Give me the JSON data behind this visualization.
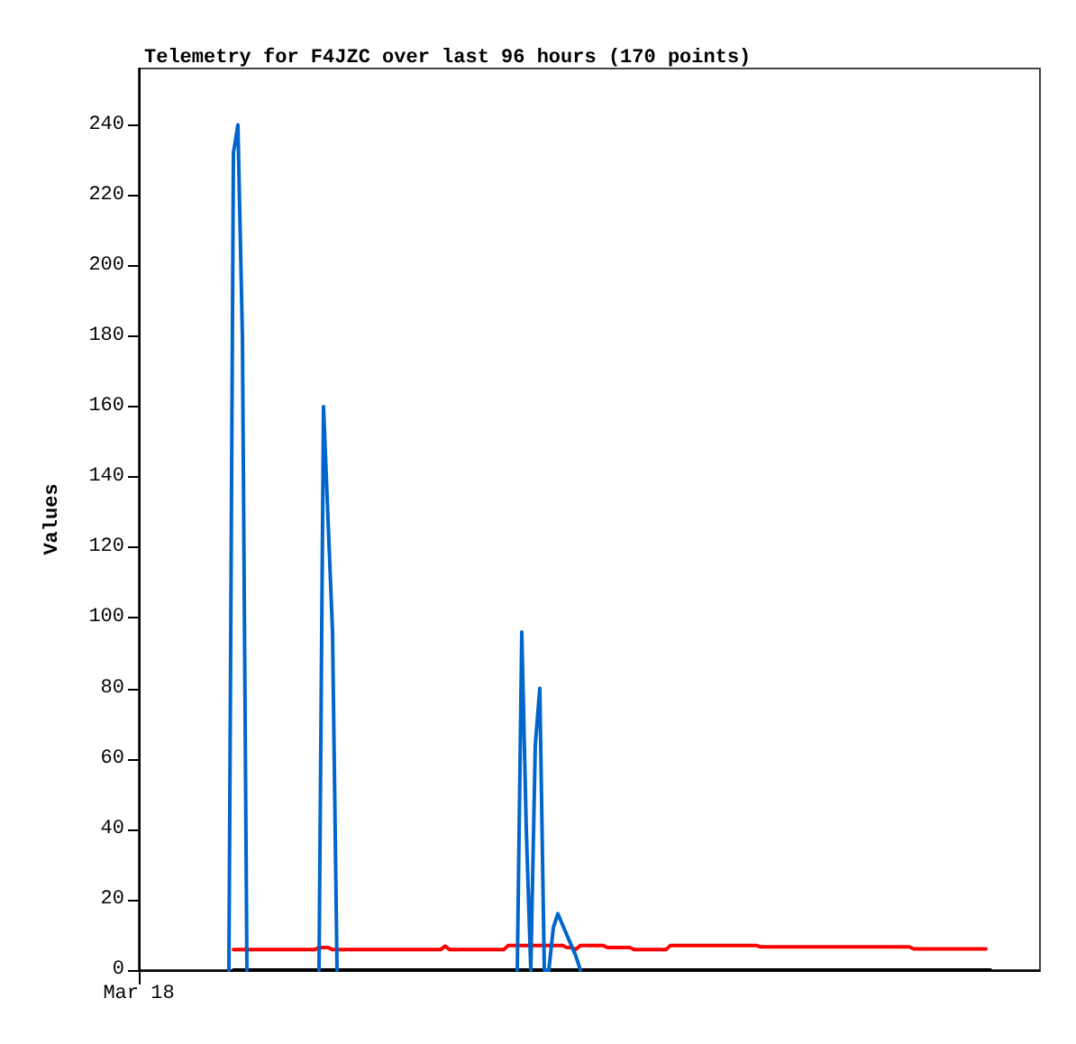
{
  "chart_data": {
    "type": "line",
    "title": "Telemetry for F4JZC over last 96 hours (170 points)",
    "ylabel": "Values",
    "categories": [
      "Mar 18",
      null,
      null,
      null,
      null,
      null,
      null,
      null,
      null,
      null,
      null,
      null,
      null,
      null,
      null,
      null,
      null,
      null,
      null,
      null,
      null,
      null,
      null,
      null,
      null,
      null,
      null,
      null,
      null,
      null,
      null,
      null,
      null,
      null,
      null,
      null,
      null,
      null,
      null,
      null,
      null,
      null,
      null,
      null,
      null,
      null,
      null,
      null,
      null,
      null,
      null,
      null,
      null,
      null,
      null,
      null,
      null,
      null,
      null,
      null,
      null,
      null,
      null,
      null,
      null,
      null,
      null,
      null,
      null,
      null,
      null,
      null,
      null,
      null,
      null,
      null,
      null,
      null,
      null,
      null,
      null,
      null,
      null,
      null,
      null,
      null,
      null,
      null,
      null,
      null,
      null,
      null,
      null,
      null,
      null,
      null,
      null,
      null,
      null,
      null,
      null,
      null,
      null,
      null,
      null,
      null,
      null,
      null,
      null,
      null,
      null,
      null,
      null,
      null,
      null,
      null,
      null,
      null,
      null,
      null,
      null,
      null,
      null,
      null,
      null,
      null,
      null,
      null,
      null,
      null,
      null,
      null,
      null,
      null,
      null,
      null,
      null,
      null,
      null,
      null,
      null,
      null,
      null,
      null,
      null,
      null,
      null,
      null,
      null,
      null,
      null,
      null,
      null,
      null,
      null,
      null,
      null,
      null,
      null,
      null,
      null,
      null,
      null,
      null,
      null,
      null,
      null,
      null,
      null,
      null,
      null,
      null,
      null,
      null,
      null,
      null,
      null,
      null,
      null,
      null,
      null,
      null,
      null,
      null,
      null,
      null,
      null,
      null,
      null,
      null,
      null,
      null,
      null,
      null,
      null,
      null,
      null,
      null,
      null,
      null,
      null
    ],
    "ylim": [
      0,
      256
    ],
    "yticks": [
      0,
      20,
      40,
      60,
      80,
      100,
      120,
      140,
      160,
      180,
      200,
      220,
      240
    ],
    "grid": false,
    "marker": "none",
    "line_style": "solid",
    "series": [
      {
        "color": "#000000",
        "values": [
          null,
          null,
          null,
          null,
          null,
          null,
          null,
          null,
          null,
          null,
          null,
          null,
          null,
          null,
          null,
          null,
          null,
          null,
          null,
          null,
          null,
          0,
          0,
          0,
          0,
          0,
          0,
          0,
          0,
          0,
          0,
          0,
          0,
          0,
          0,
          0,
          0,
          0,
          0,
          0,
          0,
          0,
          0,
          0,
          0,
          0,
          0,
          0,
          0,
          0,
          0,
          0,
          0,
          0,
          0,
          0,
          0,
          0,
          0,
          0,
          0,
          0,
          0,
          0,
          0,
          0,
          0,
          0,
          0,
          0,
          0,
          0,
          0,
          0,
          0,
          0,
          0,
          0,
          0,
          0,
          0,
          0,
          0,
          0,
          0,
          0,
          0,
          0,
          0,
          0,
          0,
          0,
          0,
          0,
          0,
          0,
          0,
          0,
          0,
          0,
          0,
          0,
          0,
          0,
          0,
          0,
          0,
          0,
          0,
          0,
          0,
          0,
          0,
          0,
          0,
          0,
          0,
          0,
          0,
          0,
          0,
          0,
          0,
          0,
          0,
          0,
          0,
          0,
          0,
          0,
          0,
          0,
          0,
          0,
          0,
          0,
          0,
          0,
          0,
          0,
          0,
          0,
          0,
          0,
          0,
          0,
          0,
          0,
          0,
          0,
          0,
          0,
          0,
          0,
          0,
          0,
          0,
          0,
          0,
          0,
          0,
          0,
          0,
          0,
          0,
          0,
          0,
          0,
          0,
          0,
          0,
          0,
          0,
          0,
          0,
          0,
          0,
          0,
          0,
          0,
          0,
          0,
          0,
          0,
          0,
          0,
          0,
          0,
          0,
          0,
          null,
          null,
          null,
          null,
          null,
          null,
          null,
          null,
          null,
          null,
          null
        ]
      },
      {
        "color": "#ff0000",
        "values": [
          null,
          null,
          null,
          null,
          null,
          null,
          null,
          null,
          null,
          null,
          null,
          null,
          null,
          null,
          null,
          null,
          null,
          null,
          null,
          null,
          null,
          5.8,
          5.8,
          5.8,
          5.8,
          5.8,
          5.8,
          5.8,
          5.8,
          5.8,
          5.8,
          5.8,
          5.8,
          5.8,
          5.8,
          5.8,
          5.8,
          5.8,
          5.8,
          5.8,
          6.4,
          6.4,
          6.4,
          5.8,
          5.8,
          5.8,
          5.8,
          5.8,
          5.8,
          5.8,
          5.8,
          5.8,
          5.8,
          5.8,
          5.8,
          5.8,
          5.8,
          5.8,
          5.8,
          5.8,
          5.8,
          5.8,
          5.8,
          5.8,
          5.8,
          5.8,
          5.8,
          5.8,
          6.8,
          5.8,
          5.8,
          5.8,
          5.8,
          5.8,
          5.8,
          5.8,
          5.8,
          5.8,
          5.8,
          5.8,
          5.8,
          5.8,
          7.0,
          7.0,
          7.0,
          7.0,
          7.0,
          7.0,
          7.0,
          7.0,
          7.0,
          7.0,
          7.0,
          7.0,
          7.0,
          6.4,
          6.4,
          5.9,
          7.0,
          7.0,
          7.0,
          7.0,
          7.0,
          7.0,
          6.4,
          6.4,
          6.4,
          6.4,
          6.4,
          6.4,
          5.8,
          5.8,
          5.8,
          5.8,
          5.8,
          5.8,
          5.8,
          5.8,
          7.0,
          7.0,
          7.0,
          7.0,
          7.0,
          7.0,
          7.0,
          7.0,
          7.0,
          7.0,
          7.0,
          7.0,
          7.0,
          7.0,
          7.0,
          7.0,
          7.0,
          7.0,
          7.0,
          7.0,
          6.6,
          6.6,
          6.6,
          6.6,
          6.6,
          6.6,
          6.6,
          6.6,
          6.6,
          6.6,
          6.6,
          6.6,
          6.6,
          6.6,
          6.6,
          6.6,
          6.6,
          6.6,
          6.6,
          6.6,
          6.6,
          6.6,
          6.6,
          6.6,
          6.6,
          6.6,
          6.6,
          6.6,
          6.6,
          6.6,
          6.6,
          6.6,
          6.6,
          6.6,
          6.0,
          6.0,
          6.0,
          6.0,
          6.0,
          6.0,
          6.0,
          6.0,
          6.0,
          6.0,
          6.0,
          6.0,
          6.0,
          6.0,
          6.0,
          6.0,
          6.0,
          null,
          null,
          null,
          null,
          null,
          null,
          null,
          null,
          null,
          null,
          null,
          null
        ]
      },
      {
        "color": "#0066cc",
        "values": [
          null,
          null,
          null,
          null,
          null,
          null,
          null,
          null,
          null,
          null,
          null,
          null,
          null,
          null,
          null,
          null,
          null,
          null,
          null,
          null,
          0,
          232,
          240,
          180,
          0,
          null,
          null,
          null,
          null,
          null,
          null,
          null,
          null,
          null,
          null,
          null,
          null,
          null,
          null,
          null,
          0,
          160,
          128,
          96,
          0,
          null,
          null,
          null,
          null,
          null,
          null,
          null,
          null,
          null,
          null,
          null,
          null,
          null,
          null,
          null,
          null,
          null,
          null,
          null,
          null,
          null,
          null,
          null,
          null,
          null,
          null,
          null,
          null,
          null,
          null,
          null,
          null,
          null,
          null,
          null,
          null,
          null,
          null,
          null,
          0,
          96,
          40,
          0,
          64,
          80,
          0,
          0,
          12,
          16,
          13,
          10,
          7,
          4,
          0,
          null,
          null,
          null,
          null,
          null,
          null,
          null,
          null,
          null,
          null,
          null,
          null,
          null,
          null,
          null,
          null,
          null,
          null,
          null,
          null,
          null,
          null,
          null,
          null,
          null,
          null,
          null,
          null,
          null,
          null,
          null,
          null,
          null,
          null,
          null,
          null,
          null,
          null,
          null,
          null,
          null,
          null,
          null,
          null,
          null,
          null,
          null,
          null,
          null,
          null,
          null,
          null,
          null,
          null,
          null,
          null,
          null,
          null,
          null,
          null,
          null,
          null,
          null,
          null,
          null,
          null,
          null,
          null,
          null,
          null,
          null,
          null,
          null,
          null,
          null,
          null,
          null,
          null,
          null,
          null,
          null,
          null,
          null,
          null,
          null,
          null,
          null,
          null,
          null,
          null,
          null,
          null,
          null,
          null,
          null,
          null,
          null,
          null,
          null,
          null,
          null,
          null
        ]
      }
    ]
  }
}
